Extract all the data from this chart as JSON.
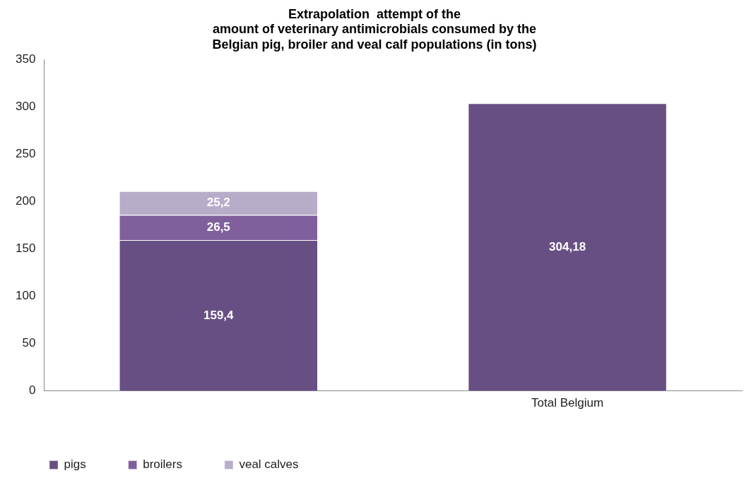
{
  "chart_data": {
    "type": "bar",
    "title": "Extrapolation  attempt of the amount of veterinary antimicrobials consumed by the Belgian pig, broiler and veal calf populations (in tons)",
    "categories": [
      null,
      "Total Belgium"
    ],
    "stacked": true,
    "series": [
      {
        "name": "pigs",
        "color": "#684f83",
        "values": [
          159.4,
          null
        ],
        "value_labels": [
          "159,4",
          null
        ]
      },
      {
        "name": "broilers",
        "color": "#7f609c",
        "values": [
          26.5,
          null
        ],
        "value_labels": [
          "26,5",
          null
        ]
      },
      {
        "name": "veal calves",
        "color": "#b8adc9",
        "values": [
          25.2,
          null
        ],
        "value_labels": [
          "25,2",
          null
        ]
      },
      {
        "color": "#684f83",
        "values": [
          null,
          304.18
        ],
        "value_labels": [
          null,
          "304,18"
        ]
      }
    ],
    "ylim": [
      0,
      350
    ],
    "yticks": [
      0,
      50,
      100,
      150,
      200,
      250,
      300,
      350
    ],
    "grid": false,
    "legend": "bottom left"
  }
}
